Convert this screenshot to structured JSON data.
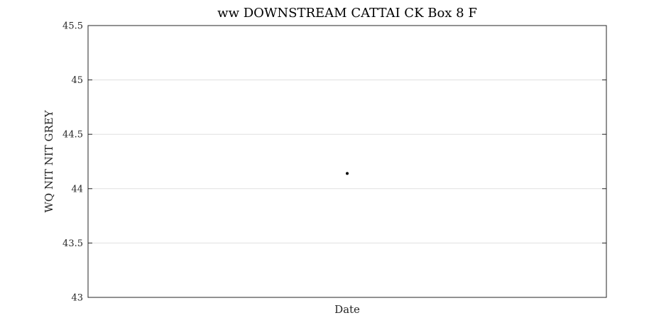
{
  "chart_data": {
    "type": "scatter",
    "title": "ww DOWNSTREAM CATTAI CK Box 8 F",
    "xlabel": "Date",
    "ylabel": "WQ NIT NIT GREY",
    "ylim": [
      43,
      45.5
    ],
    "yticks": [
      43,
      43.5,
      44,
      44.5,
      45,
      45.5
    ],
    "ytick_labels": [
      "43",
      "43.5",
      "44",
      "44.5",
      "45",
      "45.5"
    ],
    "grid": true,
    "legend": "none",
    "series": [
      {
        "points": [
          {
            "y": 44.14
          }
        ]
      }
    ],
    "colors": {
      "marker": "#000000",
      "grid": "#e0e0e0",
      "axes": "#262626"
    }
  }
}
